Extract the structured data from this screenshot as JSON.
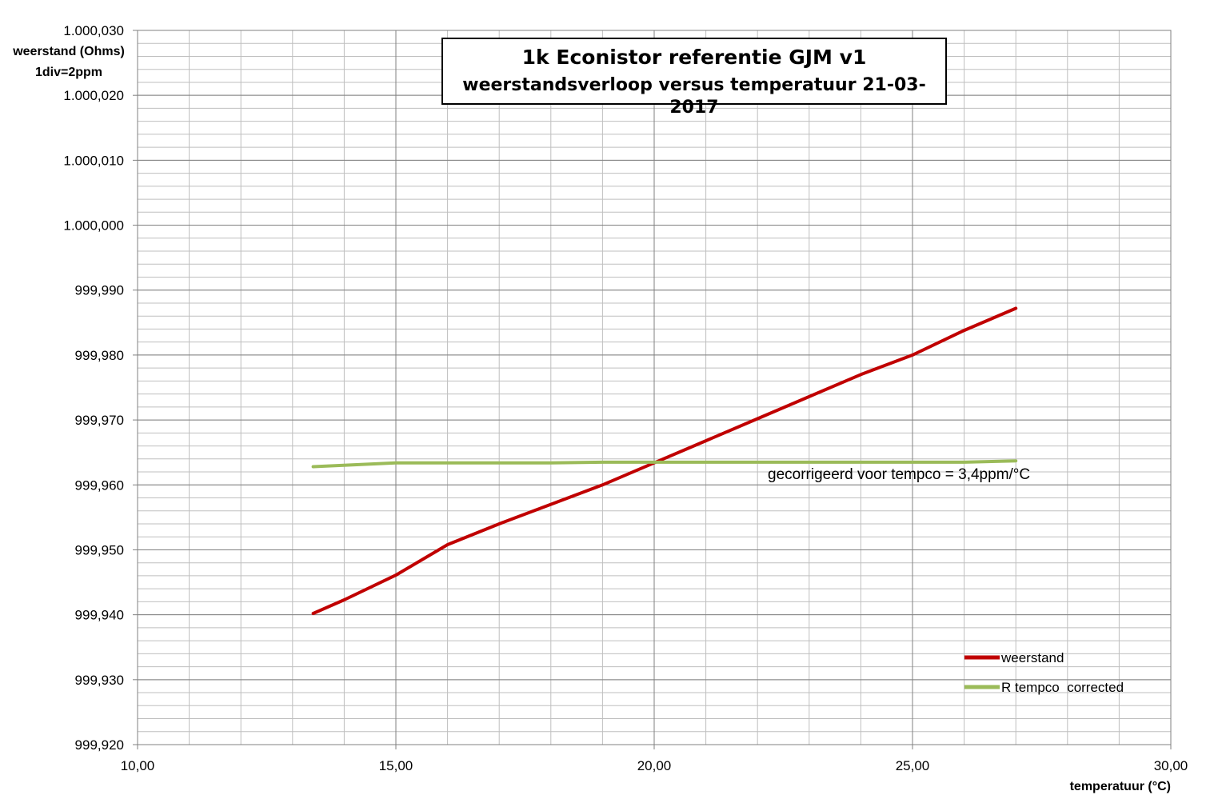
{
  "chart_data": {
    "type": "line",
    "title": "1k Econistor referentie GJM v1",
    "subtitle": "weerstandsverloop versus temperatuur 21-03-2017",
    "xlabel": "temperatuur (°C)",
    "ylabel": "weerstand (Ohms)",
    "ylabel_note": "1div=2ppm",
    "xlim": [
      10,
      30
    ],
    "ylim": [
      999.92,
      1000.03
    ],
    "x_ticks": [
      "10,00",
      "15,00",
      "20,00",
      "25,00",
      "30,00"
    ],
    "y_ticks": [
      "999,920",
      "999,930",
      "999,940",
      "999,950",
      "999,960",
      "999,970",
      "999,980",
      "999,990",
      "1.000,000",
      "1.000,010",
      "1.000,020",
      "1.000,030"
    ],
    "grid": "on",
    "legend_position": "bottom-right",
    "annotation": "gecorrigeerd voor tempco = 3,4ppm/°C",
    "series": [
      {
        "name": "weerstand",
        "color": "#c00000",
        "x": [
          13.4,
          14.0,
          15.0,
          16.0,
          17.0,
          18.0,
          19.0,
          20.0,
          21.0,
          22.0,
          23.0,
          24.0,
          25.0,
          26.0,
          27.0
        ],
        "y": [
          999.9402,
          999.9423,
          999.9461,
          999.9508,
          999.954,
          999.957,
          999.96,
          999.9634,
          999.9668,
          999.9702,
          999.9736,
          999.977,
          999.98,
          999.9838,
          999.9872
        ]
      },
      {
        "name": "R tempco  corrected",
        "color": "#9bbb59",
        "x": [
          13.4,
          15.0,
          16.0,
          17.0,
          18.0,
          19.0,
          20.0,
          21.0,
          22.0,
          23.0,
          24.0,
          25.0,
          26.0,
          27.0
        ],
        "y": [
          999.9628,
          999.9634,
          999.9634,
          999.9634,
          999.9634,
          999.9635,
          999.9635,
          999.9635,
          999.9635,
          999.9635,
          999.9635,
          999.9635,
          999.9635,
          999.9637
        ]
      }
    ]
  }
}
